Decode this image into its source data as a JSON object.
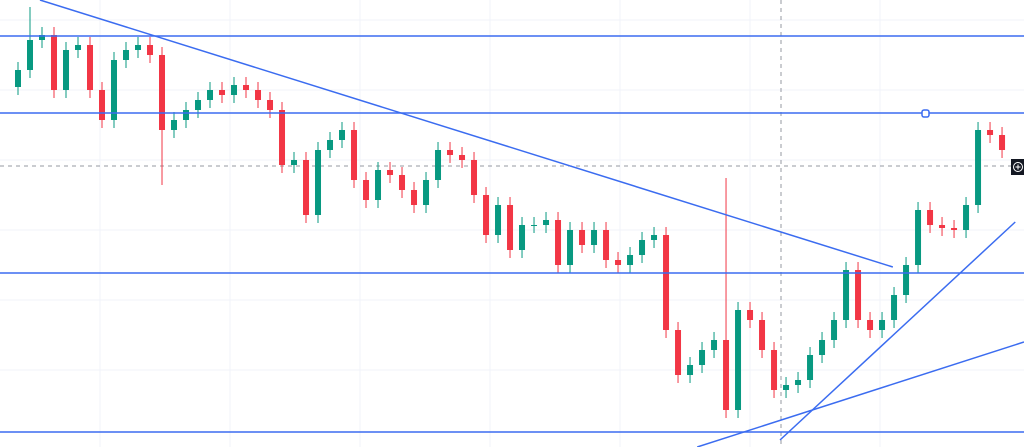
{
  "chart_data": {
    "type": "candlestick",
    "up_color": "#089981",
    "down_color": "#f23645",
    "line_color": "#3b6cf0",
    "xlim": [
      -1.5,
      83.83
    ],
    "ylim": [
      0,
      447
    ],
    "open": [
      360,
      377,
      407,
      412,
      357,
      397,
      402,
      357,
      327,
      387,
      397,
      402,
      392,
      317,
      327,
      337,
      347,
      357,
      352,
      362,
      357,
      347,
      337,
      282,
      287,
      232,
      297,
      307,
      317,
      267,
      247,
      277,
      272,
      257,
      242,
      267,
      297,
      292,
      287,
      252,
      212,
      242,
      197,
      222,
      222,
      227,
      182,
      217,
      202,
      217,
      187,
      182,
      192,
      207,
      212,
      117,
      72,
      82,
      97,
      107,
      37,
      137,
      127,
      97,
      57,
      62,
      67,
      92,
      107,
      127,
      177,
      127,
      117,
      127,
      152,
      182,
      237,
      222,
      219,
      217,
      242,
      317,
      312
    ],
    "high": [
      385,
      440,
      420,
      420,
      405,
      410,
      410,
      365,
      395,
      405,
      410,
      410,
      400,
      335,
      345,
      355,
      365,
      365,
      370,
      370,
      365,
      355,
      345,
      295,
      295,
      305,
      315,
      325,
      325,
      275,
      285,
      285,
      280,
      265,
      275,
      305,
      305,
      300,
      295,
      260,
      250,
      250,
      230,
      230,
      235,
      235,
      225,
      225,
      225,
      225,
      195,
      200,
      215,
      220,
      220,
      125,
      90,
      105,
      115,
      269,
      145,
      145,
      135,
      105,
      70,
      75,
      100,
      115,
      135,
      185,
      185,
      135,
      135,
      160,
      190,
      245,
      245,
      230,
      227,
      250,
      325,
      325,
      320
    ],
    "low": [
      352,
      369,
      399,
      349,
      349,
      389,
      349,
      319,
      319,
      379,
      389,
      384,
      262,
      309,
      319,
      329,
      339,
      344,
      344,
      349,
      339,
      329,
      274,
      274,
      224,
      224,
      289,
      299,
      259,
      239,
      239,
      264,
      249,
      234,
      234,
      259,
      284,
      279,
      244,
      204,
      204,
      189,
      189,
      214,
      214,
      174,
      174,
      194,
      194,
      179,
      174,
      174,
      184,
      199,
      109,
      64,
      64,
      74,
      89,
      29,
      29,
      119,
      89,
      49,
      49,
      54,
      59,
      84,
      99,
      119,
      119,
      109,
      109,
      119,
      144,
      174,
      214,
      211,
      209,
      209,
      234,
      304,
      289
    ],
    "close": [
      377,
      407,
      412,
      357,
      397,
      402,
      357,
      327,
      387,
      397,
      402,
      392,
      317,
      327,
      337,
      347,
      357,
      352,
      362,
      357,
      347,
      337,
      282,
      287,
      232,
      297,
      307,
      317,
      267,
      247,
      277,
      272,
      257,
      242,
      267,
      297,
      292,
      287,
      252,
      212,
      242,
      197,
      222,
      222,
      227,
      182,
      217,
      202,
      217,
      187,
      182,
      192,
      207,
      212,
      117,
      72,
      82,
      97,
      107,
      37,
      137,
      127,
      97,
      57,
      62,
      67,
      92,
      107,
      127,
      177,
      127,
      117,
      127,
      152,
      182,
      237,
      222,
      219,
      217,
      242,
      317,
      312,
      297
    ],
    "hlines": [
      411,
      334,
      174,
      15
    ],
    "trendlines": [
      {
        "x": [
          1.83,
          72.9
        ],
        "y": [
          447,
          180
        ]
      },
      {
        "x": [
          56.6,
          83.83
        ],
        "y": [
          0,
          105
        ]
      },
      {
        "x": [
          63.5,
          83.1
        ],
        "y": [
          7,
          225
        ]
      }
    ]
  }
}
